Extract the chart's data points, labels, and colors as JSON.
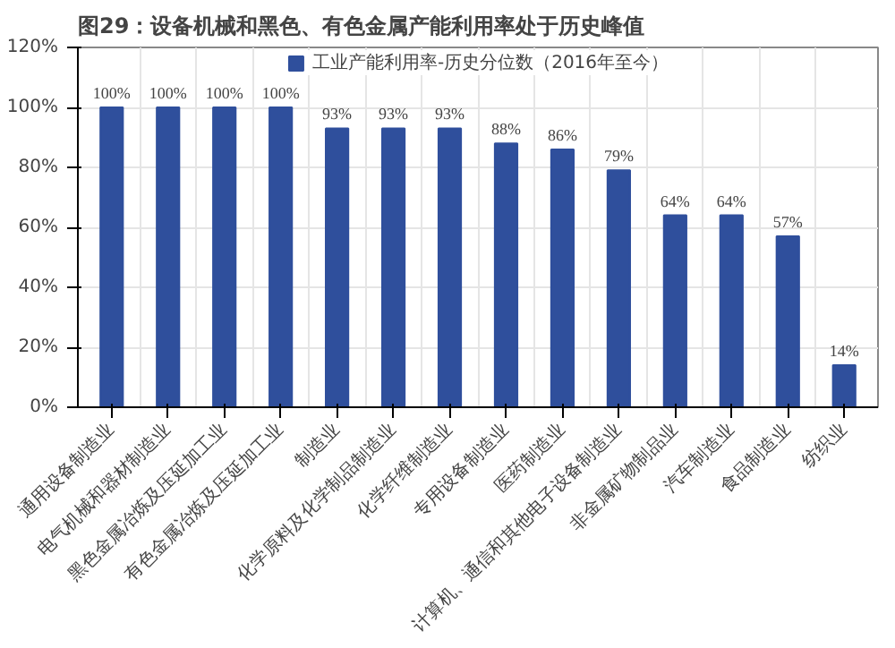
{
  "chart_data": {
    "type": "bar",
    "title": "图29：设备机械和黑色、有色金属产能利用率处于历史峰值",
    "categories": [
      "通用设备制造业",
      "电气机械和器材制造业",
      "黑色金属冶炼及压延加工业",
      "有色金属冶炼及压延加工业",
      "制造业",
      "化学原料及化学制品制造业",
      "化学纤维制造业",
      "专用设备制造业",
      "医药制造业",
      "计算机、通信和其他电子设备制造业",
      "非金属矿物制品业",
      "汽车制造业",
      "食品制造业",
      "纺织业"
    ],
    "series": [
      {
        "name": "工业产能利用率-历史分位数（2016年至今）",
        "color": "#2f4f9c",
        "values": [
          100,
          100,
          100,
          100,
          93,
          93,
          93,
          88,
          86,
          79,
          64,
          64,
          57,
          14
        ],
        "value_labels": [
          "100%",
          "100%",
          "100%",
          "100%",
          "93%",
          "93%",
          "93%",
          "88%",
          "86%",
          "79%",
          "64%",
          "64%",
          "57%",
          "14%"
        ]
      }
    ],
    "ylim": [
      0,
      120
    ],
    "yticks": [
      {
        "value": 0,
        "label": "0%"
      },
      {
        "value": 20,
        "label": "20%"
      },
      {
        "value": 40,
        "label": "40%"
      },
      {
        "value": 60,
        "label": "60%"
      },
      {
        "value": 80,
        "label": "80%"
      },
      {
        "value": 100,
        "label": "100%"
      },
      {
        "value": 120,
        "label": "120%"
      }
    ],
    "grid": true,
    "legend": "top"
  }
}
